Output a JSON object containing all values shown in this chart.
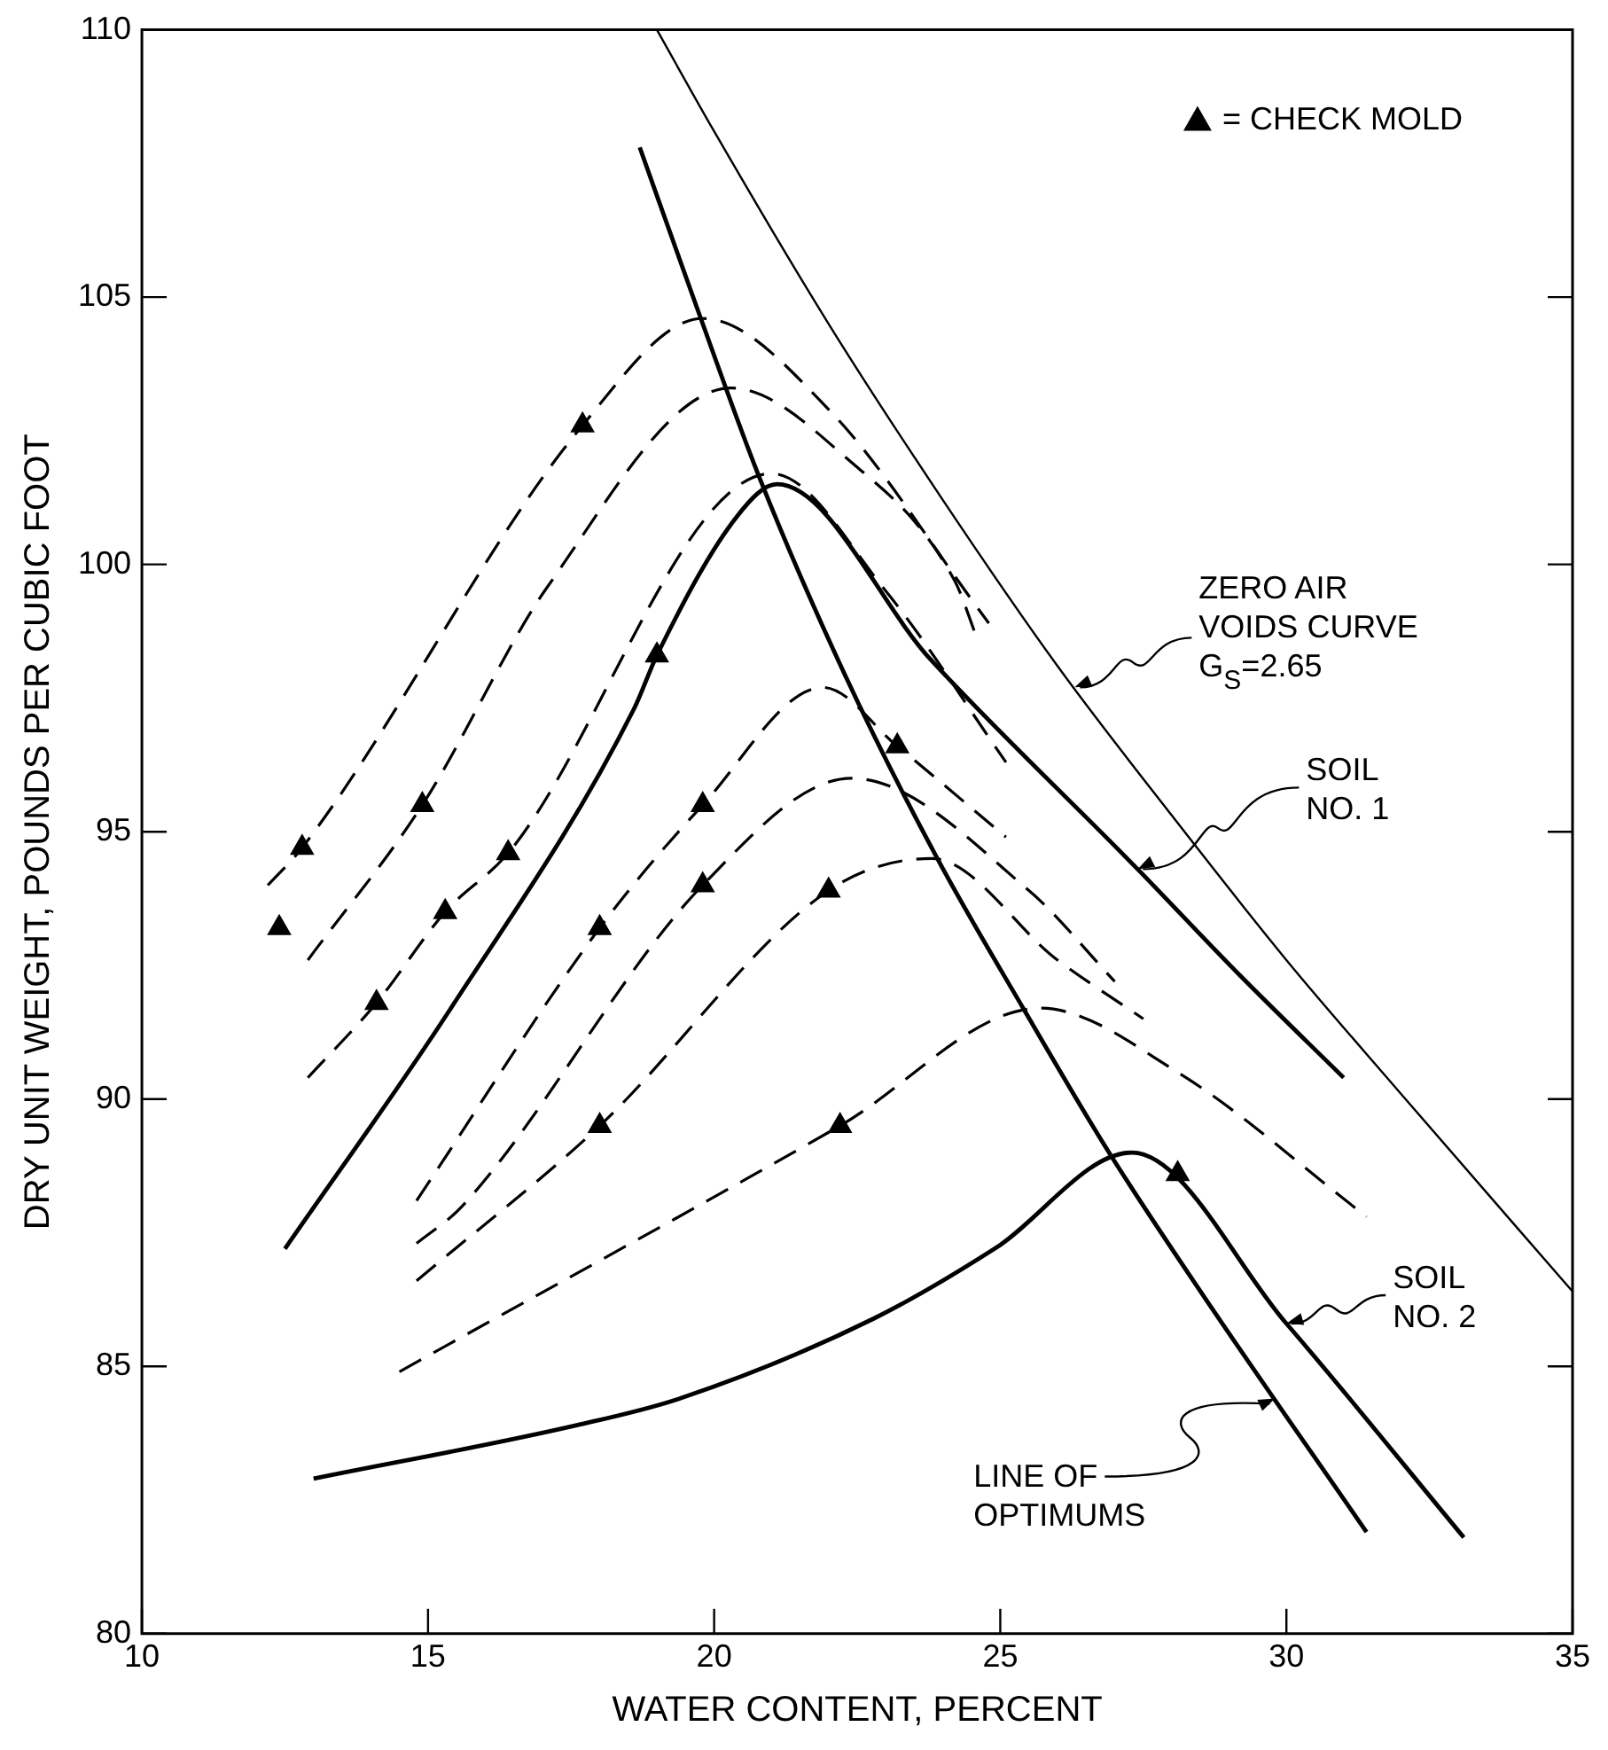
{
  "chart_data": {
    "type": "line",
    "xlabel": "WATER CONTENT, PERCENT",
    "ylabel": "DRY UNIT WEIGHT, POUNDS PER CUBIC FOOT",
    "xlim": [
      10,
      35
    ],
    "xticks": [
      10,
      15,
      20,
      25,
      30,
      35
    ],
    "ylim": [
      80,
      110
    ],
    "yticks": [
      80,
      85,
      90,
      95,
      100,
      105,
      110
    ],
    "grid": false,
    "legend": "top right",
    "series": [
      {
        "color": "#000000",
        "line_style": "solid",
        "marker": "none",
        "x": [
          19.0,
          20,
          22,
          24,
          26,
          28,
          30,
          32,
          35
        ],
        "values": [
          110.0,
          108.1,
          104.5,
          101.2,
          98.1,
          95.3,
          92.6,
          90.1,
          86.4
        ]
      },
      {
        "color": "#000000",
        "line_style": "solid",
        "marker": "none",
        "x": [
          18.7,
          19.7,
          20.8,
          22.3,
          23.9,
          25.4,
          26.9,
          28.5,
          31.4
        ],
        "values": [
          107.8,
          104.8,
          101.6,
          97.9,
          94.5,
          91.7,
          89.0,
          86.4,
          81.9
        ]
      },
      {
        "color": "#000000",
        "line_style": "solid",
        "marker": "none",
        "x": [
          12.5,
          15.4,
          18.6,
          19.0,
          20.4,
          21.1,
          23.8,
          27.4,
          29.2,
          31.0
        ],
        "values": [
          87.2,
          91.7,
          97.3,
          98.3,
          100.9,
          101.5,
          98.2,
          94.3,
          92.3,
          90.4
        ]
      },
      {
        "color": "#000000",
        "line_style": "solid",
        "marker": "none",
        "x": [
          13.0,
          17.6,
          19.4,
          22.8,
          24.9,
          27.3,
          30.0,
          33.1
        ],
        "values": [
          82.9,
          83.9,
          84.4,
          85.9,
          87.2,
          89.0,
          85.8,
          81.8
        ]
      },
      {
        "color": "#000000",
        "line_style": "dashed",
        "marker": "none",
        "x": [
          12.2,
          12.8,
          17.7,
          19.8,
          22.0,
          24.8
        ],
        "values": [
          94.0,
          94.7,
          102.6,
          104.6,
          102.9,
          98.9
        ]
      },
      {
        "color": "#000000",
        "line_style": "dashed",
        "marker": "none",
        "x": [
          12.9,
          14.9,
          17.1,
          20.3,
          22.3,
          24.2,
          24.6
        ],
        "values": [
          92.6,
          95.5,
          99.6,
          103.3,
          102.0,
          99.7,
          98.6
        ]
      },
      {
        "color": "#000000",
        "line_style": "dashed",
        "marker": "none",
        "x": [
          12.9,
          14.1,
          15.3,
          16.4,
          21.0,
          23.0,
          25.1
        ],
        "values": [
          90.4,
          91.8,
          93.5,
          94.6,
          101.7,
          99.5,
          96.3
        ]
      },
      {
        "color": "#000000",
        "line_style": "dashed",
        "marker": "none",
        "x": [
          14.8,
          18.0,
          19.8,
          21.9,
          23.2,
          25.1
        ],
        "values": [
          88.1,
          93.2,
          95.5,
          97.7,
          96.6,
          94.9
        ]
      },
      {
        "color": "#000000",
        "line_style": "dashed",
        "marker": "none",
        "x": [
          14.8,
          15.6,
          19.8,
          22.4,
          25.5,
          27.0
        ],
        "values": [
          87.3,
          88.0,
          94.0,
          96.0,
          93.9,
          92.2
        ]
      },
      {
        "color": "#000000",
        "line_style": "dashed",
        "marker": "none",
        "x": [
          14.8,
          18.0,
          22.0,
          23.8,
          26.0,
          27.5
        ],
        "values": [
          86.6,
          89.5,
          93.9,
          94.5,
          92.6,
          91.5
        ]
      },
      {
        "color": "#000000",
        "line_style": "dashed",
        "marker": "none",
        "x": [
          14.5,
          22.2,
          25.7,
          28.1,
          31.4
        ],
        "values": [
          84.9,
          89.5,
          91.7,
          90.5,
          87.8
        ]
      },
      {
        "type": "scatter",
        "name": "= CHECK MOLD",
        "color": "#000000",
        "marker": "triangle",
        "x": [
          12.4,
          12.8,
          14.9,
          14.1,
          15.3,
          16.4,
          17.7,
          19.0,
          18.0,
          19.8,
          19.8,
          18.0,
          22.0,
          22.2,
          23.2,
          28.1
        ],
        "values": [
          93.2,
          94.7,
          95.5,
          91.8,
          93.5,
          94.6,
          102.6,
          98.3,
          93.2,
          95.5,
          94.0,
          89.5,
          93.9,
          89.5,
          96.6,
          88.6
        ]
      }
    ],
    "annotations": [
      {
        "text": "ZERO AIR\nVOIDS CURVE\nG$_{S}$=2.65",
        "x": 26.3,
        "y": 97.7
      },
      {
        "text": "SOIL\nNO. 1",
        "x": 27.4,
        "y": 94.3
      },
      {
        "text": "SOIL\nNO. 2",
        "x": 30.0,
        "y": 85.8
      },
      {
        "text": "LINE OF\nOPTIMUMS",
        "x": 29.8,
        "y": 84.4
      }
    ]
  }
}
